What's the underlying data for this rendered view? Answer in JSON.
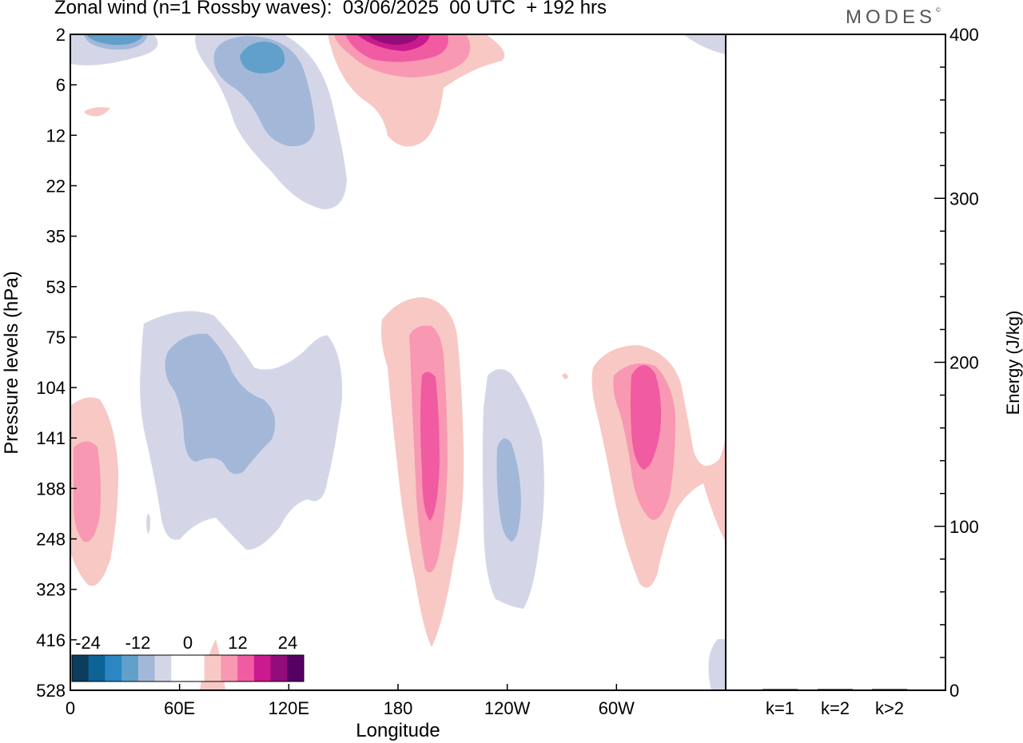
{
  "title": "Zonal wind (n=1 Rossby waves):  03/06/2025  00 UTC  + 192 hrs",
  "brand": "MODES",
  "brand_mark": "©",
  "chart_data": [
    {
      "type": "heatmap",
      "title": "Zonal wind (n=1 Rossby waves):  03/06/2025  00 UTC  + 192 hrs",
      "xlabel": "Longitude",
      "ylabel": "Pressure levels (hPa)",
      "x_tick_labels": [
        "0",
        "60E",
        "120E",
        "180",
        "120W",
        "60W"
      ],
      "x_tick_values_deg": [
        0,
        60,
        120,
        180,
        240,
        300
      ],
      "xlim_deg": [
        0,
        360
      ],
      "y_tick_labels": [
        "2",
        "6",
        "12",
        "22",
        "35",
        "53",
        "75",
        "104",
        "141",
        "188",
        "248",
        "323",
        "416",
        "528"
      ],
      "y_direction": "top-to-bottom",
      "colorbar": {
        "labels": [
          "-24",
          "-12",
          "0",
          "12",
          "24"
        ],
        "colors": [
          "#0c3d5c",
          "#0d6296",
          "#2c86c2",
          "#61a0cb",
          "#a3b8d8",
          "#d4d6e8",
          "#ffffff",
          "#ffffff",
          "#f8c8c4",
          "#f898b2",
          "#f15ba2",
          "#cb1a8d",
          "#920c7a",
          "#550062"
        ]
      },
      "features": [
        {
          "sign": "negative",
          "peak": -18,
          "lon": 23,
          "p": "2"
        },
        {
          "sign": "negative",
          "peak": -16,
          "lon": 100,
          "p": "4"
        },
        {
          "sign": "negative",
          "peak": -12,
          "lon": 85,
          "p": "141"
        },
        {
          "sign": "negative",
          "peak": -12,
          "lon": 233,
          "p": "188"
        },
        {
          "sign": "positive",
          "peak": 28,
          "lon": 170,
          "p": "2"
        },
        {
          "sign": "positive",
          "peak": 10,
          "lon": 8,
          "p": "188"
        },
        {
          "sign": "positive",
          "peak": 12,
          "lon": 198,
          "p": "141"
        },
        {
          "sign": "positive",
          "peak": 12,
          "lon": 315,
          "p": "120"
        }
      ]
    },
    {
      "type": "bar",
      "categories": [
        "k=1",
        "k=2",
        "k>2"
      ],
      "values": [
        0,
        0.5,
        0.3
      ],
      "ylabel": "Energy (J/kg)",
      "ylim": [
        0,
        400
      ],
      "y_tick_labels": [
        "0",
        "100",
        "200",
        "300",
        "400"
      ]
    }
  ]
}
